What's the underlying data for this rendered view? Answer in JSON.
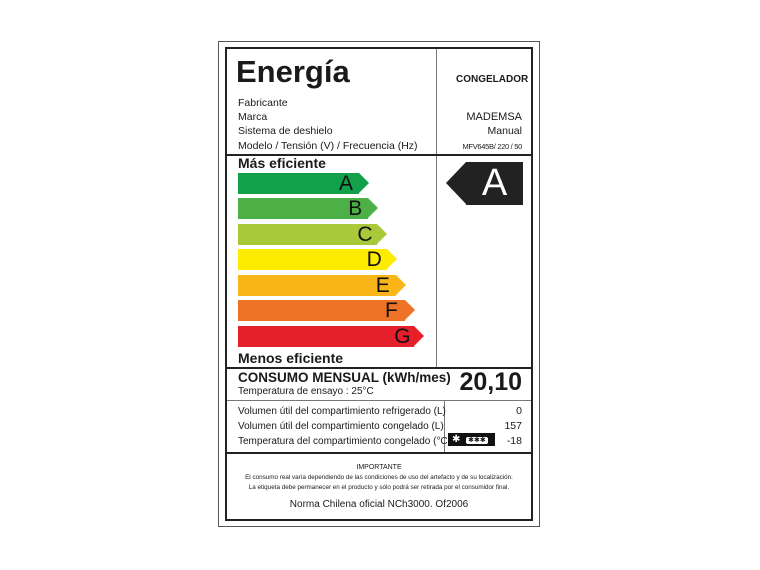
{
  "title": "Energía",
  "appliance_type": "CONGELADOR",
  "fields": [
    {
      "label": "Fabricante",
      "value": ""
    },
    {
      "label": "Marca",
      "value": "MADEMSA"
    },
    {
      "label": "Sistema de deshielo",
      "value": "Manual"
    },
    {
      "label": "Modelo / Tensión (V) / Frecuencia (Hz)",
      "value": "MFV645B/ 220 / 50"
    }
  ],
  "scale": {
    "top_label": "Más eficiente",
    "bottom_label": "Menos eficiente",
    "classes": [
      {
        "letter": "A",
        "color": "#13a04a"
      },
      {
        "letter": "B",
        "color": "#4cb047"
      },
      {
        "letter": "C",
        "color": "#a8c93a"
      },
      {
        "letter": "D",
        "color": "#fdeb00"
      },
      {
        "letter": "E",
        "color": "#fab518"
      },
      {
        "letter": "F",
        "color": "#ee7326"
      },
      {
        "letter": "G",
        "color": "#e5202b"
      }
    ],
    "rating": "A",
    "rating_color": "#222222"
  },
  "consumption": {
    "label": "CONSUMO MENSUAL (kWh/mes)",
    "test_temp": "Temperatura de ensayo : 25°C",
    "value": "20,10"
  },
  "volumes": [
    {
      "label": "Volumen útil del compartimiento refrigerado (L)",
      "value": "0"
    },
    {
      "label": "Volumen útil del compartimiento congelado (L)",
      "value": "157"
    },
    {
      "label": "Temperatura del compartimiento congelado (°C)",
      "value": "-18"
    }
  ],
  "star_rating": {
    "big_star": "✱",
    "stars": "✱✱✱"
  },
  "important": {
    "heading": "IMPORTANTE",
    "line1": "El consumo real varía dependiendo de las condiciones de uso del artefacto y de su localización.",
    "line2": "La etiqueta debe permanecer en el producto y sólo podrá ser retirada por el consumidor final.",
    "norm": "Norma Chilena oficial NCh3000. Of2006"
  }
}
